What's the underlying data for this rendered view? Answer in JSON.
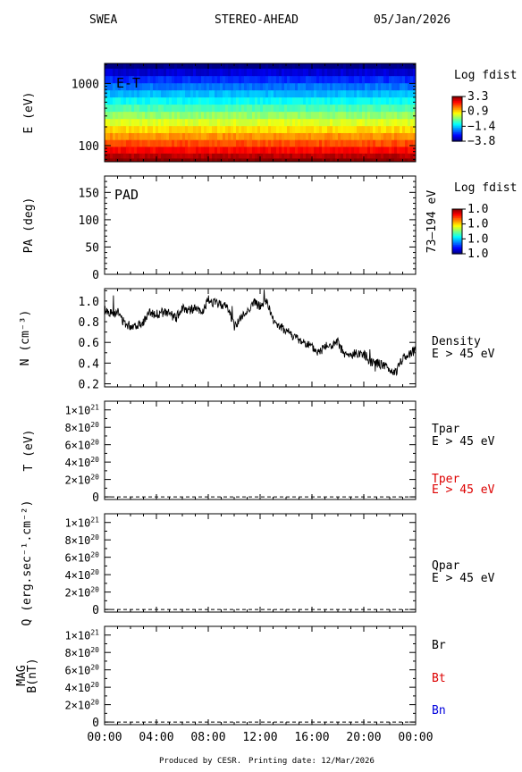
{
  "header": {
    "instrument": "SWEA",
    "spacecraft": "STEREO-AHEAD",
    "date": "05/Jan/2026"
  },
  "footer": {
    "produced_by": "Produced by CESR.",
    "printing_date": "Printing date: 12/Mar/2026"
  },
  "time_axis": {
    "ticks": [
      "00:00",
      "04:00",
      "08:00",
      "12:00",
      "16:00",
      "20:00",
      "00:00"
    ]
  },
  "colors": {
    "trace": "#000000",
    "tper": "#dd0000",
    "bt": "#dd0000",
    "bn": "#0000dd"
  },
  "chart_data": [
    {
      "type": "heatmap",
      "id": "et",
      "panel_label": "E-T",
      "ylabel": "E (eV)",
      "yscale": "log",
      "yticks": [
        {
          "value": 1000,
          "label": "1000"
        },
        {
          "value": 100,
          "label": "100"
        }
      ],
      "ylim": [
        55,
        2100
      ],
      "energy_bands_ev": [
        2000,
        1500,
        1150,
        880,
        680,
        520,
        400,
        305,
        235,
        180,
        140,
        108,
        84,
        66,
        58
      ],
      "log_fdist_levels": [
        -3.8,
        -3.2,
        -2.6,
        -2.1,
        -1.6,
        -1.1,
        -0.6,
        -0.1,
        0.4,
        0.9,
        1.4,
        1.9,
        2.4,
        2.9,
        3.3
      ],
      "colorbar": {
        "title": "Log fdist",
        "labels": [
          "3.3",
          "0.9",
          "−1.4",
          "−3.8"
        ]
      }
    },
    {
      "type": "heatmap",
      "id": "pad",
      "panel_label": "PAD",
      "ylabel": "PA (deg)",
      "right_label": "73–194 eV",
      "ylim": [
        0,
        180
      ],
      "yticks": [
        {
          "value": 150,
          "label": "150"
        },
        {
          "value": 100,
          "label": "100"
        },
        {
          "value": 50,
          "label": "50"
        },
        {
          "value": 0,
          "label": "0"
        }
      ],
      "colorbar": {
        "title": "Log fdist",
        "labels": [
          "1.0",
          "1.0",
          "1.0",
          "1.0"
        ]
      }
    },
    {
      "type": "line",
      "id": "density",
      "ylabel": "N (cm⁻³)",
      "legend": [
        "Density",
        "E > 45 eV"
      ],
      "ylim": [
        0.17,
        1.12
      ],
      "yticks": [
        {
          "value": 1.0,
          "label": "1.0"
        },
        {
          "value": 0.8,
          "label": "0.8"
        },
        {
          "value": 0.6,
          "label": "0.6"
        },
        {
          "value": 0.4,
          "label": "0.4"
        },
        {
          "value": 0.2,
          "label": "0.2"
        }
      ],
      "x_hours": [
        0,
        0.5,
        1,
        1.5,
        2,
        2.5,
        3,
        3.5,
        4,
        4.5,
        5,
        5.5,
        6,
        6.5,
        7,
        7.5,
        8,
        8.5,
        9,
        9.5,
        10,
        10.5,
        11,
        11.5,
        12,
        12.5,
        13,
        13.5,
        14,
        14.5,
        15,
        15.5,
        16,
        16.5,
        17,
        17.5,
        18,
        18.5,
        19,
        19.5,
        20,
        20.5,
        21,
        21.5,
        22,
        22.5,
        23,
        23.5,
        24
      ],
      "values": [
        0.92,
        0.88,
        0.9,
        0.79,
        0.76,
        0.77,
        0.8,
        0.89,
        0.87,
        0.89,
        0.88,
        0.83,
        0.94,
        0.91,
        0.93,
        0.88,
        1.01,
        0.98,
        0.97,
        0.94,
        0.76,
        0.83,
        0.9,
        0.99,
        0.95,
        1.0,
        0.82,
        0.75,
        0.72,
        0.67,
        0.62,
        0.6,
        0.55,
        0.5,
        0.57,
        0.56,
        0.6,
        0.48,
        0.47,
        0.5,
        0.49,
        0.42,
        0.4,
        0.38,
        0.33,
        0.31,
        0.45,
        0.49,
        0.52
      ]
    },
    {
      "type": "line",
      "id": "temperature",
      "ylabel": "T (eV)",
      "legend": [
        {
          "text": "Tpar",
          "color": "#000000"
        },
        {
          "text": "E > 45 eV",
          "color": "#000000"
        },
        {
          "text": "Tper",
          "color": "#dd0000"
        },
        {
          "text": "E > 45 eV",
          "color": "#dd0000"
        }
      ],
      "ylim": [
        -3e+19,
        1.1e+21
      ],
      "yticks": [
        {
          "value": 1e+21,
          "mant": "1×10",
          "exp": "21"
        },
        {
          "value": 8e+20,
          "mant": "8×10",
          "exp": "20"
        },
        {
          "value": 6e+20,
          "mant": "6×10",
          "exp": "20"
        },
        {
          "value": 4e+20,
          "mant": "4×10",
          "exp": "20"
        },
        {
          "value": 2e+20,
          "mant": "2×10",
          "exp": "20"
        },
        {
          "value": 0,
          "mant": "0",
          "exp": ""
        }
      ],
      "zero_line": 0
    },
    {
      "type": "line",
      "id": "heatflux",
      "ylabel": "Q (erg.sec⁻¹.cm⁻²)",
      "legend": [
        {
          "text": "Qpar",
          "color": "#000000"
        },
        {
          "text": "E > 45 eV",
          "color": "#000000"
        }
      ],
      "ylim": [
        -3e+19,
        1.1e+21
      ],
      "yticks": [
        {
          "value": 1e+21,
          "mant": "1×10",
          "exp": "21"
        },
        {
          "value": 8e+20,
          "mant": "8×10",
          "exp": "20"
        },
        {
          "value": 6e+20,
          "mant": "6×10",
          "exp": "20"
        },
        {
          "value": 4e+20,
          "mant": "4×10",
          "exp": "20"
        },
        {
          "value": 2e+20,
          "mant": "2×10",
          "exp": "20"
        },
        {
          "value": 0,
          "mant": "0",
          "exp": ""
        }
      ],
      "zero_line": 0
    },
    {
      "type": "line",
      "id": "mag",
      "ylabel": "MAG B(nT)",
      "legend": [
        {
          "text": "Br",
          "color": "#000000"
        },
        {
          "text": "Bt",
          "color": "#dd0000"
        },
        {
          "text": "Bn",
          "color": "#0000dd"
        }
      ],
      "ylim": [
        -3e+19,
        1.1e+21
      ],
      "yticks": [
        {
          "value": 1e+21,
          "mant": "1×10",
          "exp": "21"
        },
        {
          "value": 8e+20,
          "mant": "8×10",
          "exp": "20"
        },
        {
          "value": 6e+20,
          "mant": "6×10",
          "exp": "20"
        },
        {
          "value": 4e+20,
          "mant": "4×10",
          "exp": "20"
        },
        {
          "value": 2e+20,
          "mant": "2×10",
          "exp": "20"
        },
        {
          "value": 0,
          "mant": "0",
          "exp": ""
        }
      ],
      "zero_line": 0
    }
  ]
}
